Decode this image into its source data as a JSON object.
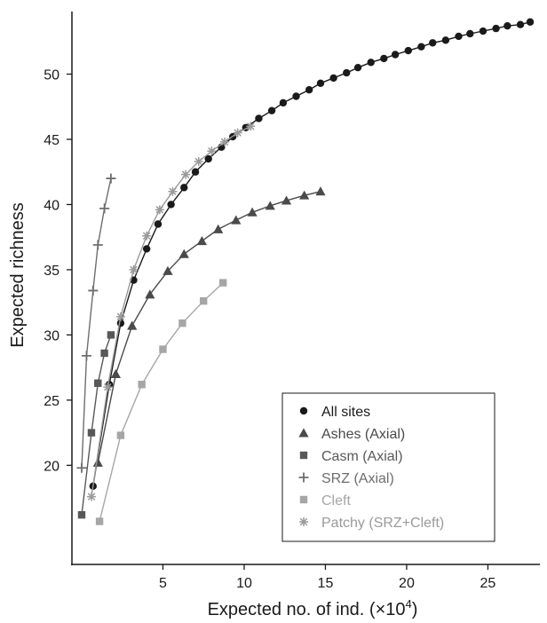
{
  "chart_data": {
    "type": "line",
    "xlabel": "Expected no. of ind. (×10",
    "xlabel_sup": "4",
    "xlabel_suffix": ")",
    "ylabel": "Expected richness",
    "xlim": [
      -0.6,
      28.2
    ],
    "ylim": [
      12.4,
      54.8
    ],
    "x_ticks": [
      5,
      10,
      15,
      20,
      25
    ],
    "y_ticks": [
      20,
      25,
      30,
      35,
      40,
      45,
      50
    ],
    "grid": false,
    "legend": {
      "position": "bottom-right"
    },
    "series": [
      {
        "name": "All sites",
        "marker": "circle",
        "color": "#1a1a1a",
        "x": [
          0.7,
          1.7,
          2.4,
          3.2,
          4.0,
          4.7,
          5.5,
          6.3,
          7.0,
          7.8,
          8.6,
          9.3,
          10.1,
          10.9,
          11.7,
          12.4,
          13.2,
          14.0,
          14.7,
          15.5,
          16.3,
          17.0,
          17.8,
          18.6,
          19.3,
          20.1,
          20.9,
          21.6,
          22.4,
          23.2,
          23.9,
          24.7,
          25.5,
          26.2,
          27.0,
          27.6
        ],
        "y": [
          18.4,
          26.2,
          30.9,
          34.2,
          36.6,
          38.5,
          40.0,
          41.3,
          42.5,
          43.5,
          44.4,
          45.2,
          45.9,
          46.6,
          47.2,
          47.8,
          48.3,
          48.8,
          49.3,
          49.7,
          50.1,
          50.5,
          50.9,
          51.2,
          51.5,
          51.8,
          52.1,
          52.4,
          52.6,
          52.9,
          53.1,
          53.3,
          53.5,
          53.7,
          53.8,
          54.0
        ]
      },
      {
        "name": "Ashes (Axial)",
        "marker": "triangle",
        "color": "#4a4a4a",
        "x": [
          1.0,
          2.1,
          3.1,
          4.2,
          5.3,
          6.3,
          7.4,
          8.4,
          9.5,
          10.5,
          11.6,
          12.6,
          13.7,
          14.7
        ],
        "y": [
          20.2,
          27.0,
          30.7,
          33.1,
          34.9,
          36.2,
          37.2,
          38.1,
          38.8,
          39.4,
          39.9,
          40.3,
          40.7,
          41.0
        ]
      },
      {
        "name": "Casm (Axial)",
        "marker": "square",
        "color": "#585858",
        "x": [
          0.0,
          0.6,
          1.0,
          1.4,
          1.8
        ],
        "y": [
          16.2,
          22.5,
          26.3,
          28.6,
          30.0
        ]
      },
      {
        "name": "SRZ (Axial)",
        "marker": "plus",
        "color": "#6e6e6e",
        "x": [
          0.0,
          0.3,
          0.7,
          1.0,
          1.4,
          1.8
        ],
        "y": [
          19.8,
          28.4,
          33.4,
          36.9,
          39.7,
          42.0
        ]
      },
      {
        "name": "Cleft",
        "marker": "square",
        "color": "#a6a6a6",
        "x": [
          1.1,
          2.4,
          3.7,
          5.0,
          6.2,
          7.5,
          8.7
        ],
        "y": [
          15.7,
          22.3,
          26.2,
          28.9,
          30.9,
          32.6,
          34.0
        ]
      },
      {
        "name": "Patchy (SRZ+Cleft)",
        "marker": "asterisk",
        "color": "#9a9a9a",
        "x": [
          0.6,
          1.6,
          2.4,
          3.2,
          4.0,
          4.8,
          5.6,
          6.4,
          7.2,
          8.0,
          8.8,
          9.6,
          10.4
        ],
        "y": [
          17.6,
          26.0,
          31.4,
          35.0,
          37.6,
          39.6,
          41.0,
          42.3,
          43.3,
          44.1,
          44.8,
          45.5,
          46.0
        ]
      }
    ]
  }
}
